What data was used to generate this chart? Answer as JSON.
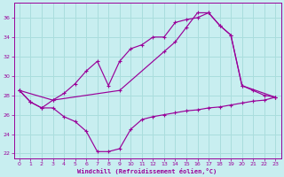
{
  "background_color": "#c8eef0",
  "grid_color": "#aadddd",
  "line_color": "#990099",
  "xlim": [
    -0.5,
    23.5
  ],
  "ylim": [
    21.5,
    37.5
  ],
  "yticks": [
    22,
    24,
    26,
    28,
    30,
    32,
    34,
    36
  ],
  "xticks": [
    0,
    1,
    2,
    3,
    4,
    5,
    6,
    7,
    8,
    9,
    10,
    11,
    12,
    13,
    14,
    15,
    16,
    17,
    18,
    19,
    20,
    21,
    22,
    23
  ],
  "xlabel": "Windchill (Refroidissement éolien,°C)",
  "series": {
    "line1_dip": {
      "x": [
        0,
        1,
        2,
        3,
        4,
        5,
        6,
        7,
        8,
        9,
        10,
        11,
        12,
        13,
        14,
        15,
        16,
        17,
        18,
        19,
        20,
        21,
        22,
        23
      ],
      "y": [
        28.5,
        27.3,
        26.7,
        26.7,
        25.8,
        25.3,
        24.3,
        22.2,
        22.2,
        22.5,
        24.5,
        25.5,
        25.8,
        26.0,
        26.2,
        26.4,
        26.5,
        26.7,
        26.8,
        27.0,
        27.2,
        27.4,
        27.5,
        27.8
      ]
    },
    "line2_arc": {
      "x": [
        0,
        1,
        2,
        3,
        4,
        5,
        6,
        7,
        8,
        9,
        10,
        11,
        12,
        13,
        14,
        15,
        16,
        17,
        18,
        19,
        20,
        21,
        22,
        23
      ],
      "y": [
        28.5,
        27.3,
        26.7,
        27.5,
        28.2,
        29.2,
        30.5,
        31.5,
        29.0,
        31.5,
        32.8,
        33.2,
        34.0,
        34.0,
        35.5,
        35.8,
        36.0,
        36.5,
        35.2,
        34.2,
        29.0,
        28.5,
        28.0,
        27.8
      ]
    },
    "line3_diag": {
      "x": [
        0,
        3,
        9,
        13,
        14,
        15,
        16,
        17,
        18,
        19,
        20,
        23
      ],
      "y": [
        28.5,
        27.5,
        28.5,
        32.5,
        33.5,
        35.0,
        36.5,
        36.5,
        35.2,
        34.2,
        29.0,
        27.8
      ]
    }
  }
}
